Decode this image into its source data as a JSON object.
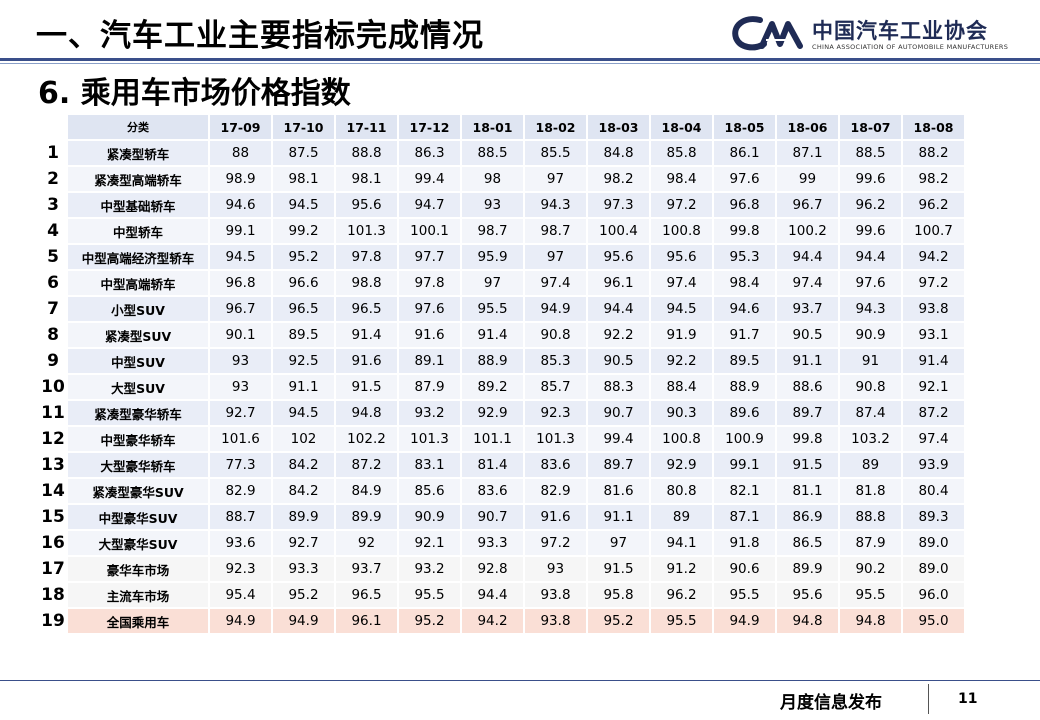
{
  "header": {
    "title": "一、汽车工业主要指标完成情况",
    "logo_cn": "中国汽车工业协会",
    "logo_en": "CHINA ASSOCIATION OF AUTOMOBILE MANUFACTURERS",
    "logo_icon": "caam-logo",
    "accent_color": "#1f2b55"
  },
  "subtitle": "6. 乘用车市场价格指数",
  "table": {
    "category_header": "分类",
    "months": [
      "17-09",
      "17-10",
      "17-11",
      "17-12",
      "18-01",
      "18-02",
      "18-03",
      "18-04",
      "18-05",
      "18-06",
      "18-07",
      "18-08"
    ],
    "rows": [
      {
        "num": "1",
        "cat": "紧凑型轿车",
        "vals": [
          "88",
          "87.5",
          "88.8",
          "86.3",
          "88.5",
          "85.5",
          "84.8",
          "85.8",
          "86.1",
          "87.1",
          "88.5",
          "88.2"
        ]
      },
      {
        "num": "2",
        "cat": "紧凑型高端轿车",
        "vals": [
          "98.9",
          "98.1",
          "98.1",
          "99.4",
          "98",
          "97",
          "98.2",
          "98.4",
          "97.6",
          "99",
          "99.6",
          "98.2"
        ]
      },
      {
        "num": "3",
        "cat": "中型基础轿车",
        "vals": [
          "94.6",
          "94.5",
          "95.6",
          "94.7",
          "93",
          "94.3",
          "97.3",
          "97.2",
          "96.8",
          "96.7",
          "96.2",
          "96.2"
        ]
      },
      {
        "num": "4",
        "cat": "中型轿车",
        "vals": [
          "99.1",
          "99.2",
          "101.3",
          "100.1",
          "98.7",
          "98.7",
          "100.4",
          "100.8",
          "99.8",
          "100.2",
          "99.6",
          "100.7"
        ]
      },
      {
        "num": "5",
        "cat": "中型高端经济型轿车",
        "vals": [
          "94.5",
          "95.2",
          "97.8",
          "97.7",
          "95.9",
          "97",
          "95.6",
          "95.6",
          "95.3",
          "94.4",
          "94.4",
          "94.2"
        ]
      },
      {
        "num": "6",
        "cat": "中型高端轿车",
        "vals": [
          "96.8",
          "96.6",
          "98.8",
          "97.8",
          "97",
          "97.4",
          "96.1",
          "97.4",
          "98.4",
          "97.4",
          "97.6",
          "97.2"
        ]
      },
      {
        "num": "7",
        "cat": "小型SUV",
        "vals": [
          "96.7",
          "96.5",
          "96.5",
          "97.6",
          "95.5",
          "94.9",
          "94.4",
          "94.5",
          "94.6",
          "93.7",
          "94.3",
          "93.8"
        ]
      },
      {
        "num": "8",
        "cat": "紧凑型SUV",
        "vals": [
          "90.1",
          "89.5",
          "91.4",
          "91.6",
          "91.4",
          "90.8",
          "92.2",
          "91.9",
          "91.7",
          "90.5",
          "90.9",
          "93.1"
        ]
      },
      {
        "num": "9",
        "cat": "中型SUV",
        "vals": [
          "93",
          "92.5",
          "91.6",
          "89.1",
          "88.9",
          "85.3",
          "90.5",
          "92.2",
          "89.5",
          "91.1",
          "91",
          "91.4"
        ]
      },
      {
        "num": "10",
        "cat": "大型SUV",
        "vals": [
          "93",
          "91.1",
          "91.5",
          "87.9",
          "89.2",
          "85.7",
          "88.3",
          "88.4",
          "88.9",
          "88.6",
          "90.8",
          "92.1"
        ]
      },
      {
        "num": "11",
        "cat": "紧凑型豪华轿车",
        "vals": [
          "92.7",
          "94.5",
          "94.8",
          "93.2",
          "92.9",
          "92.3",
          "90.7",
          "90.3",
          "89.6",
          "89.7",
          "87.4",
          "87.2"
        ]
      },
      {
        "num": "12",
        "cat": "中型豪华轿车",
        "vals": [
          "101.6",
          "102",
          "102.2",
          "101.3",
          "101.1",
          "101.3",
          "99.4",
          "100.8",
          "100.9",
          "99.8",
          "103.2",
          "97.4"
        ]
      },
      {
        "num": "13",
        "cat": "大型豪华轿车",
        "vals": [
          "77.3",
          "84.2",
          "87.2",
          "83.1",
          "81.4",
          "83.6",
          "89.7",
          "92.9",
          "99.1",
          "91.5",
          "89",
          "93.9"
        ]
      },
      {
        "num": "14",
        "cat": "紧凑型豪华SUV",
        "vals": [
          "82.9",
          "84.2",
          "84.9",
          "85.6",
          "83.6",
          "82.9",
          "81.6",
          "80.8",
          "82.1",
          "81.1",
          "81.8",
          "80.4"
        ]
      },
      {
        "num": "15",
        "cat": "中型豪华SUV",
        "vals": [
          "88.7",
          "89.9",
          "89.9",
          "90.9",
          "90.7",
          "91.6",
          "91.1",
          "89",
          "87.1",
          "86.9",
          "88.8",
          "89.3"
        ]
      },
      {
        "num": "16",
        "cat": "大型豪华SUV",
        "vals": [
          "93.6",
          "92.7",
          "92",
          "92.1",
          "93.3",
          "97.2",
          "97",
          "94.1",
          "91.8",
          "86.5",
          "87.9",
          "89.0"
        ]
      },
      {
        "num": "17",
        "cat": "豪华车市场",
        "vals": [
          "92.3",
          "93.3",
          "93.7",
          "93.2",
          "92.8",
          "93",
          "91.5",
          "91.2",
          "90.6",
          "89.9",
          "90.2",
          "89.0"
        ]
      },
      {
        "num": "18",
        "cat": "主流车市场",
        "vals": [
          "95.4",
          "95.2",
          "96.5",
          "95.5",
          "94.4",
          "93.8",
          "95.8",
          "96.2",
          "95.5",
          "95.6",
          "95.5",
          "96.0"
        ]
      },
      {
        "num": "19",
        "cat": "全国乘用车",
        "vals": [
          "94.9",
          "94.9",
          "96.1",
          "95.2",
          "94.2",
          "93.8",
          "95.2",
          "95.5",
          "94.9",
          "94.8",
          "94.8",
          "95.0"
        ]
      }
    ],
    "highlight_color": "#fadfd6"
  },
  "footer": {
    "text": "月度信息发布",
    "page": "11"
  }
}
